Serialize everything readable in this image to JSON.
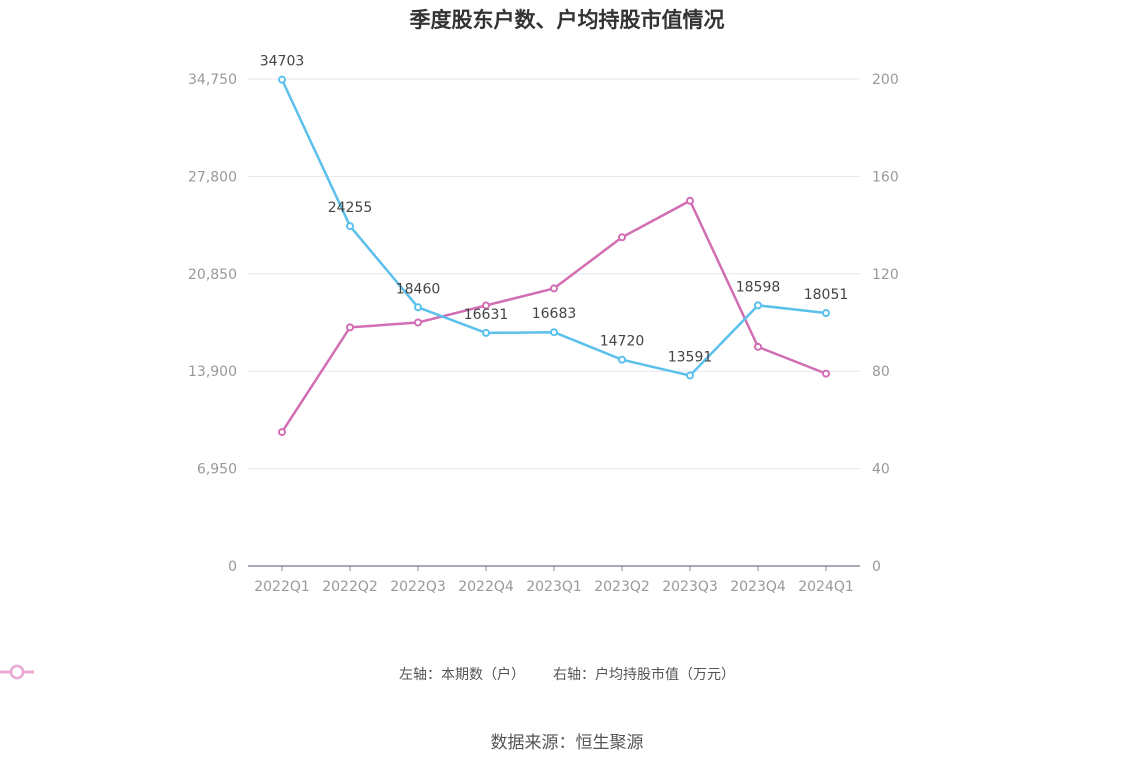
{
  "chart_data": {
    "type": "line",
    "title": "季度股东户数、户均持股市值情况",
    "categories": [
      "2022Q1",
      "2022Q2",
      "2022Q3",
      "2022Q4",
      "2023Q1",
      "2023Q2",
      "2023Q3",
      "2023Q4",
      "2024Q1"
    ],
    "y_left": {
      "ticks": [
        "0",
        "6,950",
        "13,900",
        "20,850",
        "27,800",
        "34,750"
      ],
      "range": [
        0,
        34750
      ]
    },
    "y_right": {
      "ticks": [
        "0",
        "40",
        "80",
        "120",
        "160",
        "200"
      ],
      "range": [
        0,
        200
      ]
    },
    "grid": true,
    "legend_position": "bottom",
    "series": [
      {
        "name": "左轴：本期数（户）",
        "axis": "left",
        "color": "#5bc0eb",
        "values": [
          34703,
          24255,
          18460,
          16631,
          16683,
          14720,
          13591,
          18598,
          18051
        ],
        "labels": [
          "34703",
          "24255",
          "18460",
          "16631",
          "16683",
          "14720",
          "13591",
          "18598",
          "18051"
        ]
      },
      {
        "name": "右轴：户均持股市值（万元）",
        "axis": "right",
        "color": "#d16eb4",
        "values": [
          55,
          98,
          100,
          107,
          114,
          135,
          150,
          90,
          79
        ]
      }
    ]
  },
  "source": "数据来源：恒生聚源"
}
